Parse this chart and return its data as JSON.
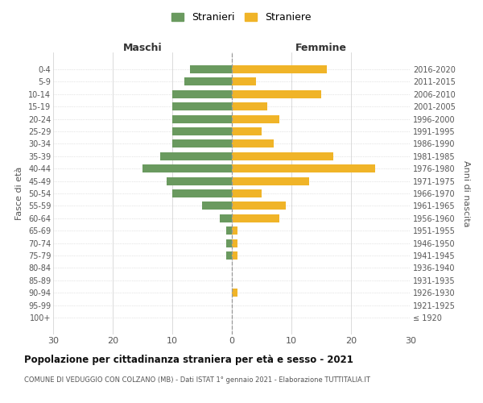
{
  "age_groups": [
    "100+",
    "95-99",
    "90-94",
    "85-89",
    "80-84",
    "75-79",
    "70-74",
    "65-69",
    "60-64",
    "55-59",
    "50-54",
    "45-49",
    "40-44",
    "35-39",
    "30-34",
    "25-29",
    "20-24",
    "15-19",
    "10-14",
    "5-9",
    "0-4"
  ],
  "birth_years": [
    "≤ 1920",
    "1921-1925",
    "1926-1930",
    "1931-1935",
    "1936-1940",
    "1941-1945",
    "1946-1950",
    "1951-1955",
    "1956-1960",
    "1961-1965",
    "1966-1970",
    "1971-1975",
    "1976-1980",
    "1981-1985",
    "1986-1990",
    "1991-1995",
    "1996-2000",
    "2001-2005",
    "2006-2010",
    "2011-2015",
    "2016-2020"
  ],
  "males": [
    0,
    0,
    0,
    0,
    0,
    1,
    1,
    1,
    2,
    5,
    10,
    11,
    15,
    12,
    10,
    10,
    10,
    10,
    10,
    8,
    7
  ],
  "females": [
    0,
    0,
    1,
    0,
    0,
    1,
    1,
    1,
    8,
    9,
    5,
    13,
    24,
    17,
    7,
    5,
    8,
    6,
    15,
    4,
    16
  ],
  "male_color": "#6a9a5f",
  "female_color": "#f0b428",
  "xlim": 30,
  "title": "Popolazione per cittadinanza straniera per età e sesso - 2021",
  "subtitle": "COMUNE DI VEDUGGIO CON COLZANO (MB) - Dati ISTAT 1° gennaio 2021 - Elaborazione TUTTITALIA.IT",
  "xlabel_left": "Maschi",
  "xlabel_right": "Femmine",
  "ylabel_left": "Fasce di età",
  "ylabel_right": "Anni di nascita",
  "legend_male": "Stranieri",
  "legend_female": "Straniere",
  "background_color": "#ffffff",
  "grid_color": "#cccccc"
}
